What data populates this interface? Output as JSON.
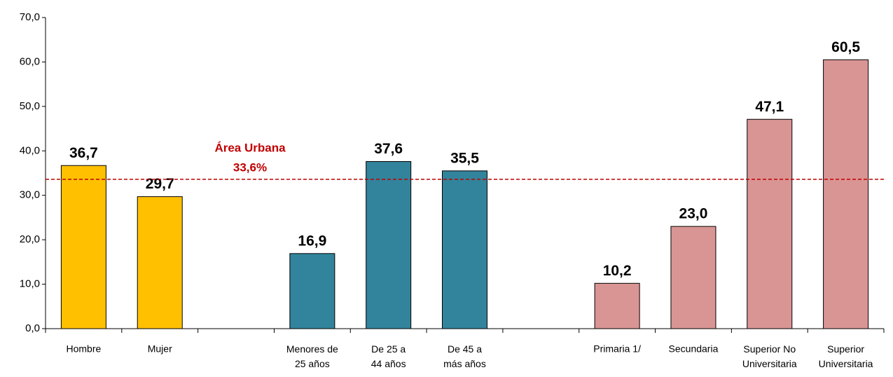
{
  "chart_data": {
    "type": "bar",
    "categories": [
      "Hombre",
      "Mujer",
      null,
      "Menores de\n25 años",
      "De 25 a\n44 años",
      "De 45 a\nmás años",
      null,
      "Primaria  1/",
      "Secundaria",
      "Superior No\nUniversitaria",
      "Superior\nUniversitaria"
    ],
    "values": [
      36.7,
      29.7,
      null,
      16.9,
      37.6,
      35.5,
      null,
      10.2,
      23.0,
      47.1,
      60.5
    ],
    "value_labels": [
      "36,7",
      "29,7",
      null,
      "16,9",
      "37,6",
      "35,5",
      null,
      "10,2",
      "23,0",
      "47,1",
      "60,5"
    ],
    "colors": [
      "#ffc000",
      "#ffc000",
      null,
      "#31849b",
      "#31849b",
      "#31849b",
      null,
      "#d99594",
      "#d99594",
      "#d99594",
      "#d99594"
    ],
    "ylim": [
      0,
      70
    ],
    "yticks": [
      {
        "value": 0,
        "label": "0,0"
      },
      {
        "value": 10,
        "label": "10,0"
      },
      {
        "value": 20,
        "label": "20,0"
      },
      {
        "value": 30,
        "label": "30,0"
      },
      {
        "value": 40,
        "label": "40,0"
      },
      {
        "value": 50,
        "label": "50,0"
      },
      {
        "value": 60,
        "label": "60,0"
      },
      {
        "value": 70,
        "label": "70,0"
      }
    ],
    "reference_line": {
      "text": "Área Urbana",
      "value": 33.6,
      "value_label": "33,6%",
      "color": "#c00000"
    },
    "grid": false
  }
}
